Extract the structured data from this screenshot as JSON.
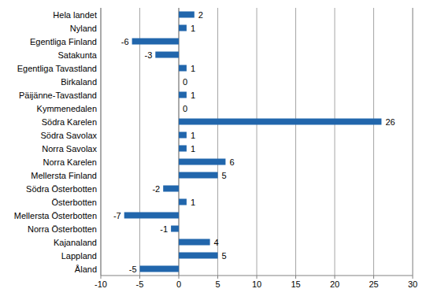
{
  "chart_data": {
    "type": "bar",
    "orientation": "horizontal",
    "categories": [
      "Hela landet",
      "Nyland",
      "Egentliga Finland",
      "Satakunta",
      "Egentliga Tavastland",
      "Birkaland",
      "Päijänne-Tavastland",
      "Kymmenedalen",
      "Södra Karelen",
      "Södra Savolax",
      "Norra Savolax",
      "Norra Karelen",
      "Mellersta Finland",
      "Södra Österbotten",
      "Österbotten",
      "Mellersta Österbotten",
      "Norra Österbotten",
      "Kajanaland",
      "Lappland",
      "Åland"
    ],
    "values": [
      2,
      1,
      -6,
      -3,
      1,
      0,
      1,
      0,
      26,
      1,
      1,
      6,
      5,
      -2,
      1,
      -7,
      -1,
      4,
      5,
      -5
    ],
    "color": "#2166ac",
    "xlim": [
      -10,
      30
    ],
    "xticks": [
      -10,
      -5,
      0,
      5,
      10,
      15,
      20,
      25,
      30
    ],
    "grid": true,
    "data_labels": true
  }
}
